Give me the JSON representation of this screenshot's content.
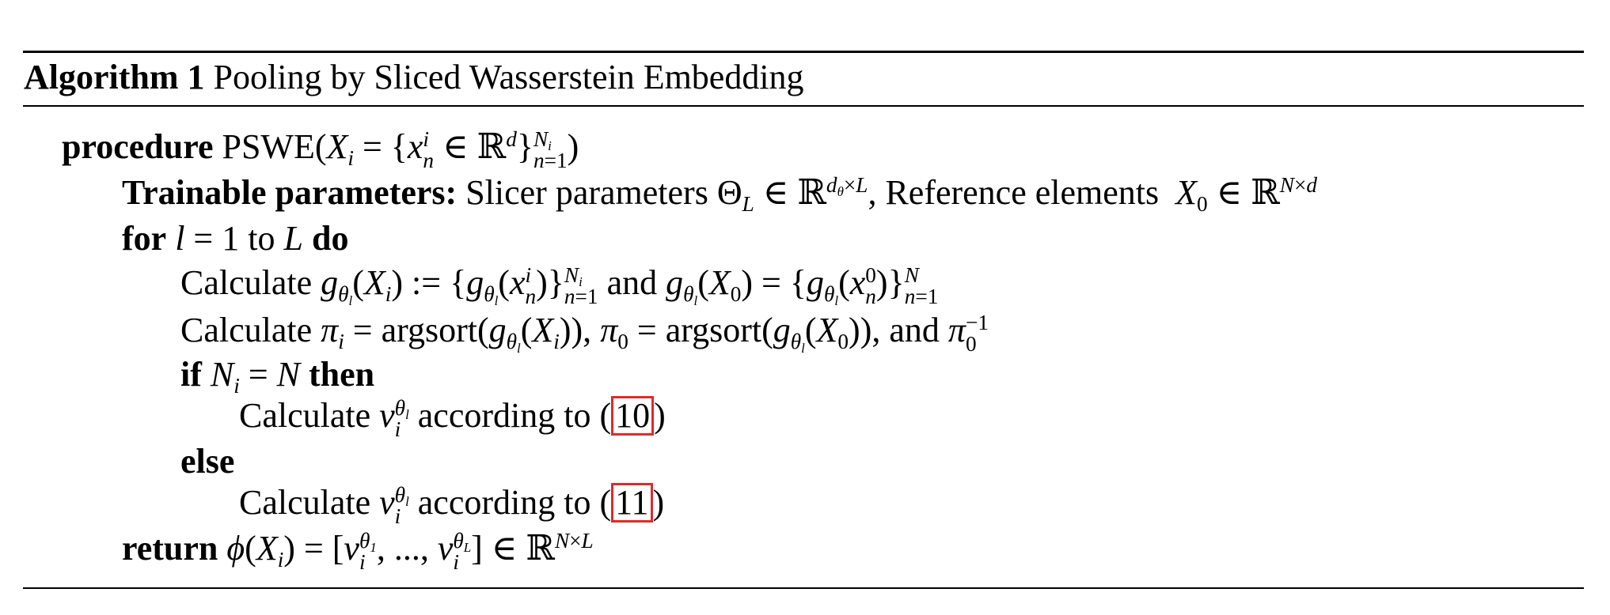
{
  "caption": {
    "label": "Algorithm 1",
    "title": "Pooling by Sliced Wasserstein Embedding"
  },
  "keywords": {
    "procedure": "procedure",
    "trainable": "Trainable parameters:",
    "for": "for",
    "do": "do",
    "if": "if",
    "then": "then",
    "else": "else",
    "return": "return",
    "and": "and"
  },
  "text": {
    "procedure_name": "PSWE",
    "slicer": "Slicer parameters",
    "reference": "Reference elements",
    "calculate": "Calculate",
    "to": "to",
    "according_to": "according to",
    "argsort": "argsort"
  },
  "refs": {
    "eq_equal": "10",
    "eq_unequal": "11"
  },
  "colors": {
    "ref_box": "#e02a2a",
    "rule": "#000000"
  }
}
